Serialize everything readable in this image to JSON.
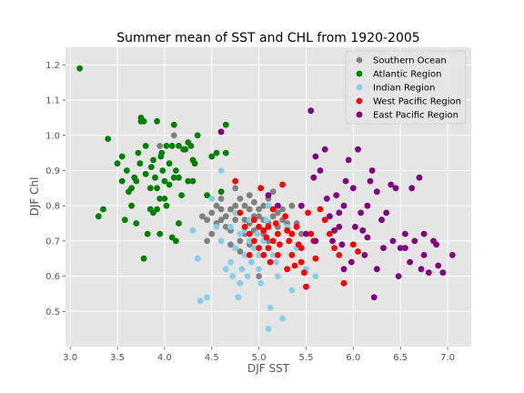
{
  "chart_data": {
    "type": "scatter",
    "title": "Summer mean of SST and CHL from 1920-2005",
    "xlabel": "DJF SST",
    "ylabel": "DJF Chl",
    "xlim": [
      2.95,
      7.25
    ],
    "ylim": [
      0.4,
      1.25
    ],
    "xticks": [
      "3.0",
      "3.5",
      "4.0",
      "4.5",
      "5.0",
      "5.5",
      "6.0",
      "6.5",
      "7.0"
    ],
    "yticks": [
      "0.5",
      "0.6",
      "0.7",
      "0.8",
      "0.9",
      "1.0",
      "1.1",
      "1.2"
    ],
    "grid": true,
    "legend_position": "top-right",
    "series": [
      {
        "name": "Southern Ocean",
        "color": "#808080",
        "points": [
          [
            4.1,
            1.0
          ],
          [
            3.95,
            0.97
          ],
          [
            4.45,
            0.76
          ],
          [
            4.5,
            0.78
          ],
          [
            4.55,
            0.8
          ],
          [
            4.6,
            0.82
          ],
          [
            4.65,
            0.77
          ],
          [
            4.7,
            0.79
          ],
          [
            4.75,
            0.8
          ],
          [
            4.8,
            0.82
          ],
          [
            4.85,
            0.8
          ],
          [
            4.9,
            0.83
          ],
          [
            4.95,
            0.81
          ],
          [
            5.0,
            0.79
          ],
          [
            5.05,
            0.8
          ],
          [
            5.1,
            0.82
          ],
          [
            5.15,
            0.84
          ],
          [
            5.2,
            0.78
          ],
          [
            5.25,
            0.76
          ],
          [
            5.3,
            0.75
          ],
          [
            4.6,
            0.76
          ],
          [
            4.7,
            0.73
          ],
          [
            4.8,
            0.7
          ],
          [
            4.85,
            0.72
          ],
          [
            4.9,
            0.75
          ],
          [
            4.95,
            0.77
          ],
          [
            5.0,
            0.74
          ],
          [
            5.05,
            0.72
          ],
          [
            5.1,
            0.7
          ],
          [
            4.75,
            0.76
          ],
          [
            4.8,
            0.78
          ],
          [
            4.9,
            0.79
          ],
          [
            5.0,
            0.77
          ],
          [
            5.05,
            0.76
          ],
          [
            5.1,
            0.75
          ],
          [
            5.15,
            0.77
          ],
          [
            5.2,
            0.74
          ],
          [
            4.5,
            0.72
          ],
          [
            4.55,
            0.75
          ],
          [
            4.65,
            0.74
          ],
          [
            4.7,
            0.69
          ],
          [
            4.8,
            0.67
          ],
          [
            5.0,
            0.6
          ],
          [
            4.45,
            0.7
          ],
          [
            5.25,
            0.79
          ],
          [
            5.35,
            0.8
          ],
          [
            5.4,
            0.75
          ],
          [
            4.85,
            0.76
          ],
          [
            4.95,
            0.73
          ],
          [
            4.75,
            0.85
          ],
          [
            4.6,
            0.79
          ],
          [
            5.3,
            0.73
          ],
          [
            5.45,
            0.72
          ],
          [
            4.4,
            0.77
          ],
          [
            4.9,
            0.69
          ]
        ]
      },
      {
        "name": "Atlantic Region",
        "color": "#008000",
        "points": [
          [
            3.1,
            1.19
          ],
          [
            3.4,
            0.99
          ],
          [
            3.35,
            0.79
          ],
          [
            3.3,
            0.77
          ],
          [
            3.5,
            0.92
          ],
          [
            3.55,
            0.94
          ],
          [
            3.55,
            0.87
          ],
          [
            3.6,
            0.9
          ],
          [
            3.65,
            0.85
          ],
          [
            3.65,
            0.8
          ],
          [
            3.7,
            0.87
          ],
          [
            3.7,
            0.75
          ],
          [
            3.72,
            0.95
          ],
          [
            3.75,
            1.04
          ],
          [
            3.75,
            1.05
          ],
          [
            3.78,
            1.04
          ],
          [
            3.8,
            0.97
          ],
          [
            3.8,
            0.89
          ],
          [
            3.82,
            0.72
          ],
          [
            3.85,
            0.85
          ],
          [
            3.85,
            0.79
          ],
          [
            3.88,
            0.93
          ],
          [
            3.9,
            0.88
          ],
          [
            3.92,
            0.85
          ],
          [
            3.92,
            0.79
          ],
          [
            3.95,
            0.82
          ],
          [
            3.95,
            0.72
          ],
          [
            3.97,
            0.95
          ],
          [
            3.98,
            0.9
          ],
          [
            4.0,
            0.87
          ],
          [
            4.0,
            0.82
          ],
          [
            4.02,
            0.8
          ],
          [
            4.05,
            0.92
          ],
          [
            4.05,
            0.86
          ],
          [
            4.08,
            0.97
          ],
          [
            4.08,
            0.71
          ],
          [
            4.1,
            1.03
          ],
          [
            4.1,
            0.88
          ],
          [
            4.12,
            0.9
          ],
          [
            4.15,
            0.97
          ],
          [
            4.15,
            0.88
          ],
          [
            4.18,
            0.83
          ],
          [
            4.2,
            0.96
          ],
          [
            4.22,
            0.96
          ],
          [
            4.25,
            0.98
          ],
          [
            4.25,
            0.87
          ],
          [
            4.28,
            0.97
          ],
          [
            4.3,
            0.93
          ],
          [
            4.32,
            0.92
          ],
          [
            4.35,
            1.0
          ],
          [
            3.78,
            0.65
          ],
          [
            3.92,
            1.04
          ],
          [
            4.12,
            0.7
          ],
          [
            3.62,
            0.84
          ],
          [
            3.58,
            0.76
          ],
          [
            4.45,
            0.83
          ],
          [
            4.5,
            0.94
          ],
          [
            4.55,
            0.95
          ],
          [
            4.6,
            1.01
          ],
          [
            4.65,
            1.03
          ],
          [
            4.65,
            0.95
          ],
          [
            4.6,
            0.84
          ],
          [
            4.3,
            0.87
          ],
          [
            3.86,
            0.91
          ],
          [
            3.96,
            0.94
          ],
          [
            4.02,
            0.97
          ],
          [
            3.68,
            0.88
          ],
          [
            3.74,
            0.92
          ],
          [
            4.15,
            0.75
          ],
          [
            3.88,
            0.78
          ]
        ]
      },
      {
        "name": "Indian Region",
        "color": "#87ceeb",
        "points": [
          [
            4.3,
            0.73
          ],
          [
            4.35,
            0.65
          ],
          [
            4.38,
            0.53
          ],
          [
            4.45,
            0.54
          ],
          [
            4.5,
            0.82
          ],
          [
            4.55,
            0.74
          ],
          [
            4.6,
            0.9
          ],
          [
            4.6,
            0.7
          ],
          [
            4.65,
            0.62
          ],
          [
            4.7,
            0.64
          ],
          [
            4.72,
            0.6
          ],
          [
            4.75,
            0.68
          ],
          [
            4.78,
            0.54
          ],
          [
            4.8,
            0.58
          ],
          [
            4.82,
            0.62
          ],
          [
            4.85,
            0.66
          ],
          [
            4.88,
            0.6
          ],
          [
            4.9,
            0.7
          ],
          [
            4.92,
            0.64
          ],
          [
            4.95,
            0.68
          ],
          [
            4.98,
            0.72
          ],
          [
            5.0,
            0.62
          ],
          [
            5.02,
            0.58
          ],
          [
            5.05,
            0.7
          ],
          [
            5.08,
            0.76
          ],
          [
            5.1,
            0.45
          ],
          [
            5.12,
            0.51
          ],
          [
            5.15,
            0.66
          ],
          [
            5.18,
            0.64
          ],
          [
            5.2,
            0.6
          ],
          [
            5.25,
            0.48
          ],
          [
            5.3,
            0.74
          ],
          [
            5.35,
            0.56
          ],
          [
            5.4,
            0.68
          ],
          [
            5.5,
            0.62
          ],
          [
            5.6,
            0.6
          ],
          [
            4.7,
            0.74
          ],
          [
            4.8,
            0.72
          ],
          [
            4.9,
            0.76
          ],
          [
            5.0,
            0.66
          ],
          [
            4.75,
            0.78
          ],
          [
            4.85,
            0.73
          ],
          [
            5.2,
            0.72
          ],
          [
            5.1,
            0.8
          ]
        ]
      },
      {
        "name": "West Pacific Region",
        "color": "#ff0000",
        "points": [
          [
            4.75,
            0.87
          ],
          [
            4.8,
            0.78
          ],
          [
            4.85,
            0.74
          ],
          [
            4.9,
            0.72
          ],
          [
            4.95,
            0.76
          ],
          [
            5.0,
            0.68
          ],
          [
            5.02,
            0.85
          ],
          [
            5.05,
            0.66
          ],
          [
            5.08,
            0.71
          ],
          [
            5.1,
            0.74
          ],
          [
            5.12,
            0.64
          ],
          [
            5.15,
            0.79
          ],
          [
            5.18,
            0.75
          ],
          [
            5.2,
            0.72
          ],
          [
            5.22,
            0.69
          ],
          [
            5.25,
            0.86
          ],
          [
            5.28,
            0.77
          ],
          [
            5.3,
            0.73
          ],
          [
            5.32,
            0.7
          ],
          [
            5.35,
            0.66
          ],
          [
            5.38,
            0.63
          ],
          [
            5.4,
            0.74
          ],
          [
            5.42,
            0.69
          ],
          [
            5.45,
            0.68
          ],
          [
            5.48,
            0.61
          ],
          [
            5.5,
            0.57
          ],
          [
            5.52,
            0.78
          ],
          [
            5.55,
            0.72
          ],
          [
            5.58,
            0.7
          ],
          [
            5.6,
            0.65
          ],
          [
            5.65,
            0.79
          ],
          [
            5.7,
            0.76
          ],
          [
            5.75,
            0.72
          ],
          [
            5.8,
            0.68
          ],
          [
            5.85,
            0.66
          ],
          [
            5.9,
            0.58
          ],
          [
            6.0,
            0.69
          ],
          [
            6.05,
            0.67
          ],
          [
            5.0,
            0.74
          ],
          [
            4.9,
            0.66
          ],
          [
            5.1,
            0.68
          ],
          [
            5.3,
            0.62
          ],
          [
            5.2,
            0.66
          ],
          [
            5.15,
            0.7
          ],
          [
            5.35,
            0.72
          ],
          [
            5.45,
            0.64
          ],
          [
            4.95,
            0.7
          ],
          [
            5.05,
            0.73
          ]
        ]
      },
      {
        "name": "East Pacific Region",
        "color": "#800080",
        "points": [
          [
            4.6,
            1.01
          ],
          [
            5.1,
            0.83
          ],
          [
            5.2,
            0.8
          ],
          [
            5.45,
            0.8
          ],
          [
            5.55,
            1.07
          ],
          [
            5.58,
            0.88
          ],
          [
            5.6,
            0.94
          ],
          [
            5.65,
            0.9
          ],
          [
            5.7,
            0.96
          ],
          [
            5.72,
            0.82
          ],
          [
            5.75,
            0.77
          ],
          [
            5.78,
            0.7
          ],
          [
            5.8,
            0.73
          ],
          [
            5.82,
            0.83
          ],
          [
            5.85,
            0.74
          ],
          [
            5.88,
            0.69
          ],
          [
            5.9,
            0.8
          ],
          [
            5.92,
            0.87
          ],
          [
            5.95,
            0.93
          ],
          [
            5.98,
            0.64
          ],
          [
            6.0,
            0.85
          ],
          [
            6.02,
            0.74
          ],
          [
            6.05,
            0.96
          ],
          [
            6.08,
            0.78
          ],
          [
            6.1,
            0.73
          ],
          [
            6.12,
            0.66
          ],
          [
            6.15,
            0.8
          ],
          [
            6.18,
            0.87
          ],
          [
            6.2,
            0.9
          ],
          [
            6.22,
            0.54
          ],
          [
            6.25,
            0.84
          ],
          [
            6.3,
            0.76
          ],
          [
            6.32,
            0.68
          ],
          [
            6.35,
            0.78
          ],
          [
            6.4,
            0.86
          ],
          [
            6.42,
            0.7
          ],
          [
            6.45,
            0.85
          ],
          [
            6.48,
            0.6
          ],
          [
            6.5,
            0.68
          ],
          [
            6.55,
            0.68
          ],
          [
            6.6,
            0.64
          ],
          [
            6.62,
            0.85
          ],
          [
            6.65,
            0.7
          ],
          [
            6.7,
            0.88
          ],
          [
            6.72,
            0.62
          ],
          [
            6.75,
            0.66
          ],
          [
            6.8,
            0.61
          ],
          [
            6.85,
            0.7
          ],
          [
            6.9,
            0.63
          ],
          [
            6.95,
            0.61
          ],
          [
            7.05,
            0.66
          ],
          [
            5.5,
            0.72
          ],
          [
            5.6,
            0.7
          ],
          [
            5.9,
            0.62
          ],
          [
            6.25,
            0.62
          ],
          [
            5.85,
            0.78
          ],
          [
            6.15,
            0.71
          ],
          [
            6.55,
            0.72
          ],
          [
            6.88,
            0.69
          ],
          [
            6.75,
            0.72
          ]
        ]
      }
    ]
  }
}
